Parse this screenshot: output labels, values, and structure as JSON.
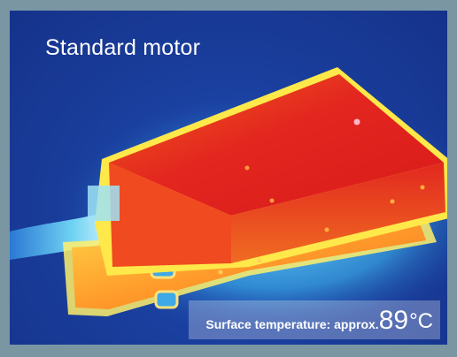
{
  "image": {
    "title": "Standard motor",
    "temperature_label": "Surface temperature: approx.",
    "temperature_value": "89",
    "temperature_unit": "°C"
  },
  "colors": {
    "border": "#7a96a3",
    "background_cold": "#1a3f9e",
    "hot_core": "#e3261f",
    "warm_edge": "#ff8a1c",
    "halo": "#ffe84a"
  }
}
